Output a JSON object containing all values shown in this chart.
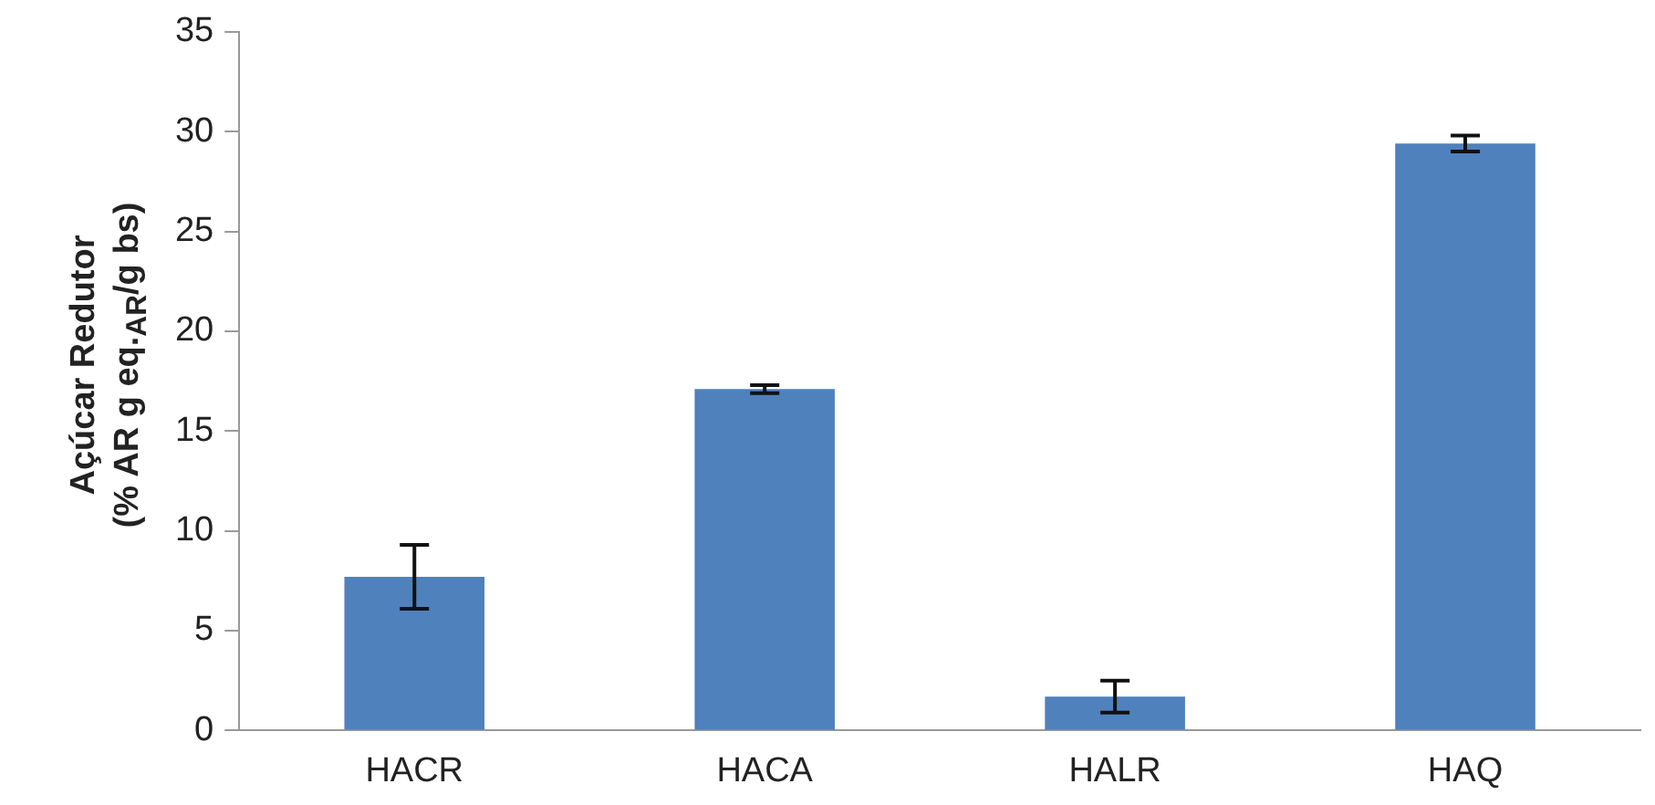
{
  "chart_data": {
    "type": "bar",
    "ylabel": "Açúcar Redutor\n(% AR g eq.$_{AR}$/g bs)",
    "categories": [
      "HACR",
      "HACA",
      "HALR",
      "HAQ"
    ],
    "values": [
      7.7,
      17.1,
      1.7,
      29.4
    ],
    "errors": [
      1.6,
      0.2,
      0.8,
      0.4
    ],
    "color": "#4f81bd",
    "ylim": [
      0,
      35
    ],
    "yticks": [
      0,
      5,
      10,
      15,
      20,
      25,
      30,
      35
    ],
    "grid": false,
    "legend": false
  }
}
